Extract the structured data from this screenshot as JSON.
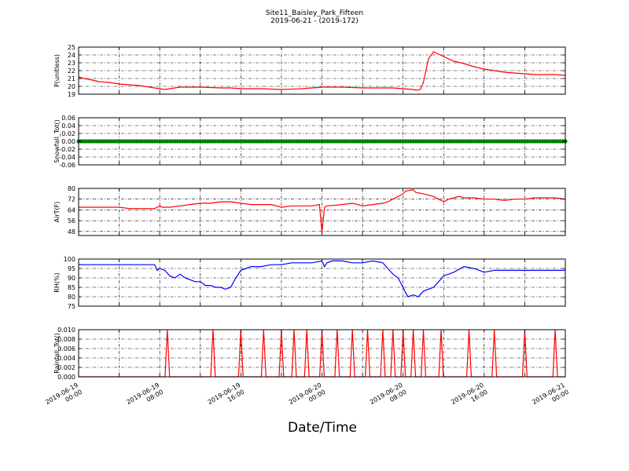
{
  "title": "Site11_Baisley_Park_Fifteen",
  "subtitle": "2019-06-21 - (2019-172)",
  "xlabel": "Date/Time",
  "x_tick_labels": [
    [
      "2019-06-19",
      "00:00"
    ],
    [
      "2019-06-19",
      "08:00"
    ],
    [
      "2019-06-19",
      "16:00"
    ],
    [
      "2019-06-20",
      "00:00"
    ],
    [
      "2019-06-20",
      "08:00"
    ],
    [
      "2019-06-20",
      "16:00"
    ],
    [
      "2019-06-21",
      "00:00"
    ]
  ],
  "chart_data": [
    {
      "type": "line",
      "ylabel": "P(unitless)",
      "ylim": [
        19,
        25
      ],
      "yticks": [
        19,
        20,
        21,
        22,
        23,
        24,
        25
      ],
      "grid": true,
      "color": "#ff0000",
      "x_unit": "hours since 2019-06-19 00:00",
      "series": [
        {
          "x": [
            0,
            1,
            2,
            4,
            6,
            8,
            10,
            12,
            14,
            15,
            16,
            17,
            20,
            24,
            28,
            30,
            32,
            36,
            40,
            44,
            46,
            48,
            52,
            56,
            60,
            62,
            64,
            66,
            66.6,
            67.4,
            68,
            69,
            70,
            72,
            74,
            76,
            78,
            80,
            82,
            84,
            86,
            88,
            90,
            92,
            94,
            96
          ],
          "y": [
            21.2,
            21.0,
            20.9,
            20.6,
            20.5,
            20.3,
            20.2,
            20.1,
            19.9,
            19.8,
            19.7,
            19.6,
            19.9,
            19.9,
            19.8,
            19.8,
            19.7,
            19.7,
            19.6,
            19.7,
            19.8,
            19.9,
            19.9,
            19.8,
            19.8,
            19.8,
            19.7,
            19.6,
            19.5,
            19.6,
            20.5,
            23.5,
            24.4,
            23.8,
            23.2,
            22.9,
            22.5,
            22.2,
            22.0,
            21.8,
            21.7,
            21.6,
            21.5,
            21.5,
            21.5,
            21.4
          ]
        }
      ]
    },
    {
      "type": "scatter",
      "ylabel": "Snowfall_Tot()",
      "ylim": [
        -0.06,
        0.06
      ],
      "yticks": [
        -0.06,
        -0.04,
        -0.02,
        0.0,
        0.02,
        0.04,
        0.06
      ],
      "grid": true,
      "color": "#008000",
      "constant_value": 0.0,
      "x_range": [
        0,
        96
      ]
    },
    {
      "type": "line",
      "ylabel": "AirT(F)",
      "ylim": [
        45,
        80
      ],
      "yticks": [
        48,
        56,
        64,
        72,
        80
      ],
      "grid": true,
      "color": "#ff0000",
      "series": [
        {
          "x": [
            0,
            2,
            4,
            6,
            8,
            10,
            12,
            14,
            15,
            15.5,
            16,
            16.5,
            18,
            20,
            22,
            24,
            26,
            28,
            30,
            32,
            34,
            36,
            38,
            40,
            42,
            44,
            46,
            47.5,
            48,
            48.5,
            49,
            52,
            54,
            56,
            58,
            60,
            61,
            62,
            64,
            64.5,
            66,
            66.5,
            68,
            70,
            71,
            72,
            73,
            74,
            75,
            76,
            78,
            80,
            82,
            84,
            86,
            88,
            90,
            92,
            94,
            96
          ],
          "y": [
            66,
            66,
            66,
            66,
            66,
            65,
            65,
            65,
            65,
            66,
            67,
            66,
            66,
            67,
            68,
            69,
            69,
            70,
            70,
            69,
            68,
            68,
            68,
            66,
            67,
            67,
            67,
            68,
            47,
            66,
            67,
            68,
            69,
            67,
            68,
            69,
            70,
            72,
            76,
            78,
            79,
            77,
            76,
            74,
            72,
            70,
            72,
            73,
            74,
            73,
            73,
            72,
            72,
            71,
            72,
            72,
            73,
            73,
            73,
            72
          ]
        }
      ]
    },
    {
      "type": "line",
      "ylabel": "RH(%)",
      "ylim": [
        75,
        100
      ],
      "yticks": [
        75,
        80,
        85,
        90,
        95,
        100
      ],
      "grid": true,
      "color": "#0000ff",
      "series": [
        {
          "x": [
            0,
            2,
            4,
            6,
            8,
            10,
            12,
            14,
            15,
            15.5,
            16,
            17,
            18,
            19,
            20,
            21,
            22,
            23,
            24,
            25,
            26,
            27,
            28,
            29,
            30,
            31,
            32,
            33,
            34,
            35,
            36,
            38,
            40,
            42,
            44,
            46,
            48,
            48.5,
            49,
            50,
            52,
            54,
            56,
            58,
            60,
            61,
            62,
            63,
            64,
            64.5,
            65,
            66,
            67,
            68,
            69,
            70,
            71,
            72,
            74,
            76,
            78,
            80,
            82,
            84,
            86,
            88,
            90,
            92,
            94,
            96
          ],
          "y": [
            97,
            97,
            97,
            97,
            97,
            97,
            97,
            97,
            97,
            94,
            95,
            94,
            91,
            90,
            92,
            90,
            89,
            88,
            88,
            86,
            86,
            85,
            85,
            84,
            85,
            90,
            94,
            95,
            96,
            96,
            96,
            97,
            97,
            98,
            98,
            98,
            99,
            96,
            98,
            99,
            99,
            98,
            98,
            99,
            98,
            95,
            92,
            90,
            85,
            82,
            80,
            81,
            80,
            83,
            84,
            85,
            88,
            91,
            93,
            96,
            95,
            93,
            94,
            94,
            94,
            94,
            94,
            94,
            94,
            94
          ]
        }
      ]
    },
    {
      "type": "line",
      "ylabel": "Rainfall_Tot()",
      "ylim": [
        0,
        0.01
      ],
      "yticks": [
        0.0,
        0.002,
        0.004,
        0.006,
        0.008,
        0.01
      ],
      "ytick_labels": [
        "0.000",
        "0.002",
        "0.004",
        "0.006",
        "0.008",
        "0.010"
      ],
      "grid": true,
      "color": "#ff0000",
      "spike_times_hours": [
        17.5,
        26.5,
        32,
        36.5,
        40,
        42.5,
        45,
        48,
        51,
        54,
        57,
        60,
        62,
        64,
        66,
        68,
        71.5,
        77,
        82,
        88,
        94
      ],
      "spike_value": 0.01
    }
  ]
}
